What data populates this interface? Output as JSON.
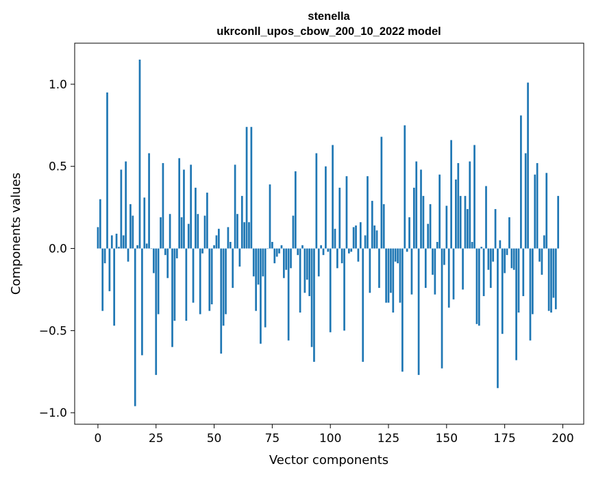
{
  "chart_data": {
    "type": "bar",
    "title_line1": "stenella",
    "title_line2": "ukrconll_upos_cbow_200_10_2022 model",
    "xlabel": "Vector components",
    "ylabel": "Components values",
    "xlim": [
      -10,
      209
    ],
    "ylim": [
      -1.07,
      1.25
    ],
    "x_ticks": [
      0,
      25,
      50,
      75,
      100,
      125,
      150,
      175,
      200
    ],
    "x_tick_labels": [
      "0",
      "25",
      "50",
      "75",
      "100",
      "125",
      "150",
      "175",
      "200"
    ],
    "y_ticks": [
      -1.0,
      -0.5,
      0.0,
      0.5,
      1.0
    ],
    "y_tick_labels": [
      "−1.0",
      "−0.5",
      "0.0",
      "0.5",
      "1.0"
    ],
    "bar_color": "#1f77b4",
    "grid": false,
    "legend": "none",
    "values": [
      0.13,
      0.3,
      -0.38,
      -0.09,
      0.95,
      -0.26,
      0.08,
      -0.47,
      0.09,
      0.01,
      0.48,
      0.08,
      0.53,
      -0.08,
      0.27,
      0.2,
      -0.96,
      0.02,
      1.15,
      -0.65,
      0.31,
      0.03,
      0.58,
      0.0,
      -0.15,
      -0.77,
      -0.4,
      0.19,
      0.52,
      -0.04,
      -0.18,
      0.21,
      -0.6,
      -0.44,
      -0.06,
      0.55,
      0.19,
      0.48,
      -0.44,
      0.15,
      0.51,
      -0.33,
      0.37,
      0.21,
      -0.4,
      -0.03,
      0.2,
      0.34,
      -0.38,
      -0.34,
      0.02,
      0.08,
      0.12,
      -0.64,
      -0.47,
      -0.4,
      0.13,
      0.04,
      -0.24,
      0.51,
      0.21,
      -0.11,
      0.32,
      0.16,
      0.74,
      0.16,
      0.74,
      -0.17,
      -0.38,
      -0.22,
      -0.58,
      -0.17,
      -0.48,
      0.0,
      0.39,
      0.04,
      -0.09,
      -0.05,
      -0.03,
      0.02,
      -0.18,
      -0.13,
      -0.56,
      -0.12,
      0.2,
      0.47,
      -0.04,
      -0.39,
      0.02,
      -0.27,
      -0.19,
      -0.29,
      -0.6,
      -0.69,
      0.58,
      -0.17,
      0.02,
      -0.04,
      0.5,
      -0.02,
      -0.51,
      0.63,
      0.12,
      -0.12,
      0.37,
      -0.09,
      -0.5,
      0.44,
      -0.03,
      -0.02,
      0.13,
      0.14,
      -0.08,
      0.16,
      -0.69,
      0.08,
      0.44,
      -0.27,
      0.29,
      0.14,
      0.11,
      -0.24,
      0.68,
      0.27,
      -0.33,
      -0.33,
      -0.27,
      -0.39,
      -0.08,
      -0.09,
      -0.33,
      -0.75,
      0.75,
      -0.02,
      0.19,
      -0.28,
      0.37,
      0.53,
      -0.77,
      0.48,
      0.32,
      -0.24,
      0.15,
      0.27,
      -0.16,
      -0.28,
      0.04,
      0.45,
      -0.73,
      -0.1,
      0.26,
      -0.36,
      0.66,
      -0.31,
      0.42,
      0.52,
      0.32,
      -0.25,
      0.32,
      0.24,
      0.53,
      0.04,
      0.63,
      -0.46,
      -0.47,
      0.01,
      -0.29,
      0.38,
      -0.13,
      -0.24,
      -0.08,
      0.24,
      -0.85,
      0.05,
      -0.52,
      -0.15,
      -0.04,
      0.19,
      -0.12,
      -0.13,
      -0.68,
      -0.39,
      0.81,
      -0.29,
      0.58,
      1.01,
      -0.56,
      -0.4,
      0.45,
      0.52,
      -0.08,
      -0.16,
      0.08,
      0.46,
      -0.38,
      -0.39,
      -0.3,
      -0.37,
      0.32
    ]
  }
}
